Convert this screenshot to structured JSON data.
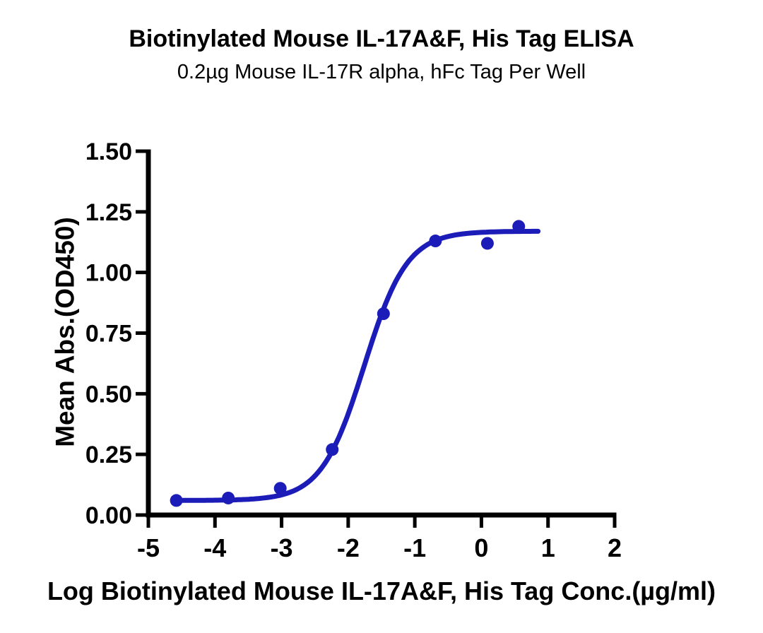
{
  "chart_data": {
    "type": "scatter",
    "title": "Biotinylated Mouse IL-17A&F, His Tag ELISA",
    "subtitle": "0.2µg Mouse IL-17R alpha, hFc Tag Per Well",
    "xlabel": "Log Biotinylated Mouse IL-17A&F, His Tag Conc.(µg/ml)",
    "ylabel": "Mean Abs.(OD450)",
    "xlim": [
      -5,
      2
    ],
    "ylim": [
      0,
      1.5
    ],
    "x_ticks": [
      "-5",
      "-4",
      "-3",
      "-2",
      "-1",
      "0",
      "1",
      "2"
    ],
    "y_ticks": [
      "0.00",
      "0.25",
      "0.50",
      "0.75",
      "1.00",
      "1.25",
      "1.50"
    ],
    "grid": false,
    "legend": false,
    "points": [
      {
        "x": -4.58,
        "y": 0.06
      },
      {
        "x": -3.8,
        "y": 0.07
      },
      {
        "x": -3.02,
        "y": 0.11
      },
      {
        "x": -2.24,
        "y": 0.27
      },
      {
        "x": -1.47,
        "y": 0.83
      },
      {
        "x": -0.69,
        "y": 1.13
      },
      {
        "x": 0.09,
        "y": 1.12
      },
      {
        "x": 0.56,
        "y": 1.19
      }
    ],
    "fit_curve": {
      "model": "4PL",
      "bottom": 0.06,
      "top": 1.17,
      "log_ec50": -1.76,
      "hill": 1.35,
      "x_start": -4.58,
      "x_end": 0.85
    },
    "colors": {
      "series": "#1C1CB8",
      "axis": "#000000",
      "text": "#000000",
      "background": "#FFFFFF"
    }
  }
}
